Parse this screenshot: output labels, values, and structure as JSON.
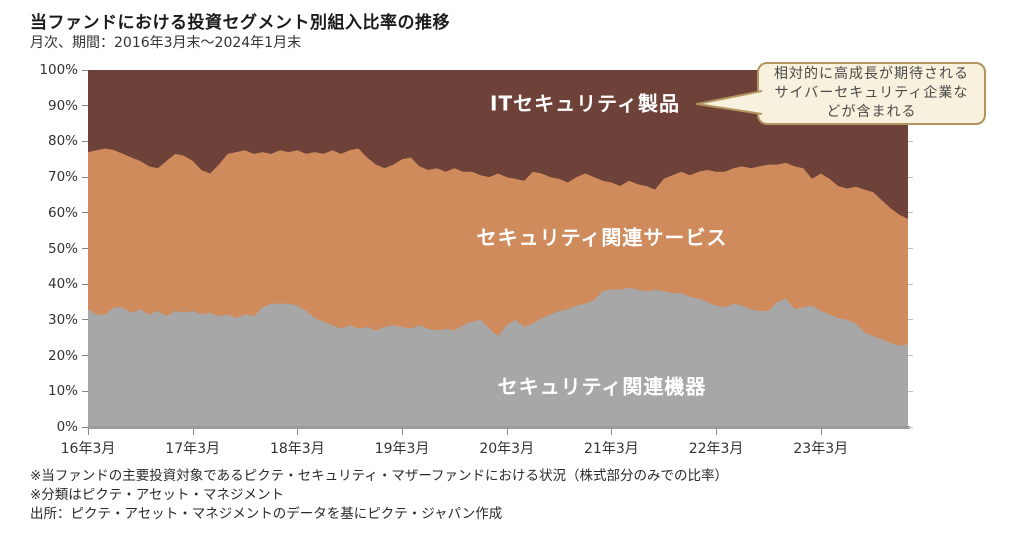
{
  "page": {
    "title": "当ファンドにおける投資セグメント別組入比率の推移",
    "subtitle": "月次、期間：2016年3月末～2024年1月末"
  },
  "chart_data": {
    "type": "area",
    "stacked": true,
    "percent_stacked": true,
    "frequency": "monthly",
    "x_start": "2016-03",
    "x_end": "2024-01",
    "x_tick_labels": [
      "16年3月",
      "17年3月",
      "18年3月",
      "19年3月",
      "20年3月",
      "21年3月",
      "22年3月",
      "23年3月"
    ],
    "months_per_x_tick": 12,
    "y_tick_labels": [
      "0%",
      "10%",
      "20%",
      "30%",
      "40%",
      "50%",
      "60%",
      "70%",
      "80%",
      "90%",
      "100%"
    ],
    "ylim": [
      0,
      100
    ],
    "grid": false,
    "legend_position": "in-plot-labels",
    "axis_color": "#9b9b9b",
    "series": [
      {
        "name": "セキュリティ関連機器",
        "color": "#A7A7A7",
        "values": [
          33,
          31.5,
          31.5,
          33.5,
          33.5,
          32,
          33,
          31.5,
          32.5,
          31,
          32.5,
          32,
          32.5,
          31.5,
          32,
          31,
          31.5,
          30.5,
          31.5,
          31,
          33.5,
          34.5,
          34.5,
          34.5,
          34,
          32.5,
          30.5,
          29.5,
          28.5,
          27.5,
          28.5,
          27.5,
          28,
          27,
          28,
          28.5,
          28,
          27.5,
          28.5,
          27.5,
          27,
          27.5,
          27,
          28.5,
          29.5,
          30,
          27.5,
          25.5,
          28.5,
          30,
          28,
          29,
          30.5,
          31.5,
          32.5,
          33,
          34,
          34.5,
          35.5,
          38,
          38.5,
          38.5,
          39,
          38.5,
          38,
          38.5,
          38,
          37.5,
          37.5,
          36.5,
          36,
          35,
          34,
          33.5,
          34.5,
          34,
          33,
          32.5,
          32.5,
          35,
          36,
          33,
          33.5,
          34,
          32.5,
          31.5,
          30.5,
          30,
          29,
          26.5,
          25.5,
          24.5,
          23.5,
          22.8,
          23.2
        ]
      },
      {
        "name": "セキュリティ関連サービス",
        "color": "#D08B5C",
        "values": [
          44,
          46,
          46.5,
          44,
          43,
          43.5,
          41.5,
          41.5,
          40,
          43.5,
          44,
          44,
          42,
          40.5,
          39,
          42.5,
          45,
          46.5,
          46,
          45.5,
          43.5,
          42,
          43,
          42.5,
          43.5,
          44,
          46.5,
          47,
          49,
          49,
          49,
          50.5,
          47.5,
          46.5,
          44.5,
          45,
          47,
          48,
          44.5,
          44.5,
          45.5,
          44,
          45.5,
          43,
          42,
          40.5,
          42.5,
          45.5,
          41.5,
          39.5,
          41,
          42.5,
          40.5,
          38.5,
          37,
          35.5,
          36,
          36.5,
          34.5,
          31,
          30,
          29,
          30,
          29.5,
          29.5,
          28,
          31.5,
          33,
          34,
          34,
          35.5,
          37,
          37.5,
          38,
          38,
          39,
          39.5,
          40.5,
          41,
          38.5,
          38,
          40,
          39,
          35.5,
          38.5,
          38,
          37,
          36.8,
          38.3,
          40,
          40.3,
          39,
          37.8,
          36.7,
          35.1
        ]
      },
      {
        "name": "ITセキュリティ製品",
        "color": "#6E4139",
        "values": [
          23,
          22.5,
          22,
          22.5,
          23.5,
          24.5,
          25.5,
          27,
          27.5,
          25.5,
          23.5,
          24,
          25.5,
          28,
          29,
          26.5,
          23.5,
          23,
          22.5,
          23.5,
          23,
          23.5,
          22.5,
          23,
          22.5,
          23.5,
          23,
          23.5,
          22.5,
          23.5,
          22.5,
          22,
          24.5,
          26.5,
          27.5,
          26.5,
          25,
          24.5,
          27,
          28,
          27.5,
          28.5,
          27.5,
          28.5,
          28.5,
          29.5,
          30,
          29,
          30,
          30.5,
          31,
          28.5,
          29,
          30,
          30.5,
          31.5,
          30,
          29,
          30,
          31,
          31.5,
          32.5,
          31,
          32,
          32.5,
          33.5,
          30.5,
          29.5,
          28.5,
          29.5,
          28.5,
          28,
          28.5,
          28.5,
          27.5,
          27,
          27.5,
          27,
          26.5,
          26.5,
          26,
          27,
          27.5,
          30.5,
          29,
          30.5,
          32.5,
          33.2,
          32.7,
          33.5,
          34.2,
          36.5,
          38.7,
          40.5,
          41.7
        ]
      }
    ]
  },
  "area_labels": {
    "product": "ITセキュリティ製品",
    "service": "セキュリティ関連サービス",
    "equipment": "セキュリティ関連機器"
  },
  "callout": {
    "lines": [
      "相対的に高成長が期待される",
      "サイバーセキュリティ企業な",
      "どが含まれる"
    ],
    "bg": "#f7f1dd",
    "border": "#b2945f"
  },
  "footnotes": [
    "※当ファンドの主要投資対象であるピクテ・セキュリティ・マザーファンドにおける状況（株式部分のみでの比率）",
    "※分類はピクテ・アセット・マネジメント",
    "出所：ピクテ・アセット・マネジメントのデータを基にピクテ・ジャパン作成"
  ]
}
